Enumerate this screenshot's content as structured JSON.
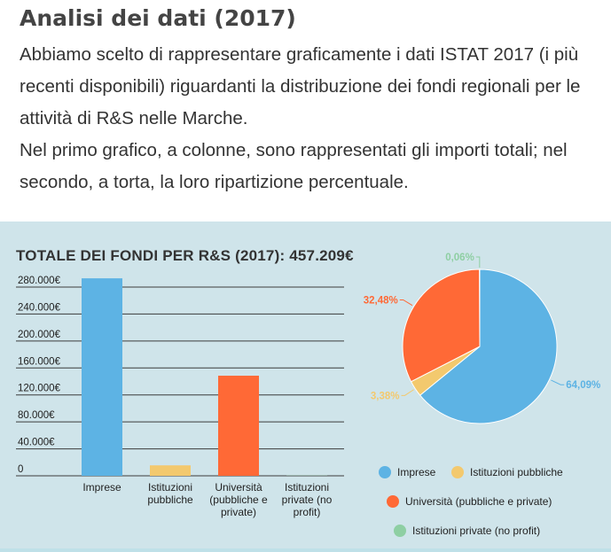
{
  "heading": "Analisi dei dati (2017)",
  "intro": {
    "line1": " Abbiamo scelto di rappresentare graficamente i dati ISTAT 2017 (i più recenti disponibili) riguardanti la distribuzione dei fondi regionali per le attività di R&S nelle Marche.",
    "line2": "Nel primo grafico, a colonne, sono rappresentati gli importi totali; nel secondo, a torta, la loro ripartizione percentuale."
  },
  "chart_data": [
    {
      "type": "bar",
      "title": "TOTALE DEI FONDI PER R&S (2017): 457.209€",
      "categories": [
        [
          "Imprese"
        ],
        [
          "Istituzioni",
          "pubbliche"
        ],
        [
          "Università",
          "(pubbliche e",
          "private)"
        ],
        [
          "Istituzioni",
          "private (no",
          "profit)"
        ]
      ],
      "values": [
        293000,
        15500,
        148500,
        300
      ],
      "colors": [
        "#5db3e4",
        "#f3c96e",
        "#ff6936",
        "#8ecfa3"
      ],
      "ylim": [
        0,
        280000
      ],
      "yticks": [
        0,
        40000,
        80000,
        120000,
        160000,
        200000,
        240000,
        280000
      ],
      "ytick_labels": [
        "0",
        "40.000€",
        "80.000€",
        "120.000€",
        "160.000€",
        "200.000€",
        "240.000€",
        "280.000€"
      ],
      "grid": true
    },
    {
      "type": "pie",
      "labels": [
        "Imprese",
        "Istituzioni pubbliche",
        "Università (pubbliche e private)",
        "Istituzioni private (no profit)"
      ],
      "values": [
        64.09,
        3.38,
        32.48,
        0.06
      ],
      "value_labels": [
        "64,09%",
        "3,38%",
        "32,48%",
        "0,06%"
      ],
      "colors": [
        "#5db3e4",
        "#f3c96e",
        "#ff6936",
        "#8ecfa3"
      ],
      "legend": "bottom"
    }
  ]
}
